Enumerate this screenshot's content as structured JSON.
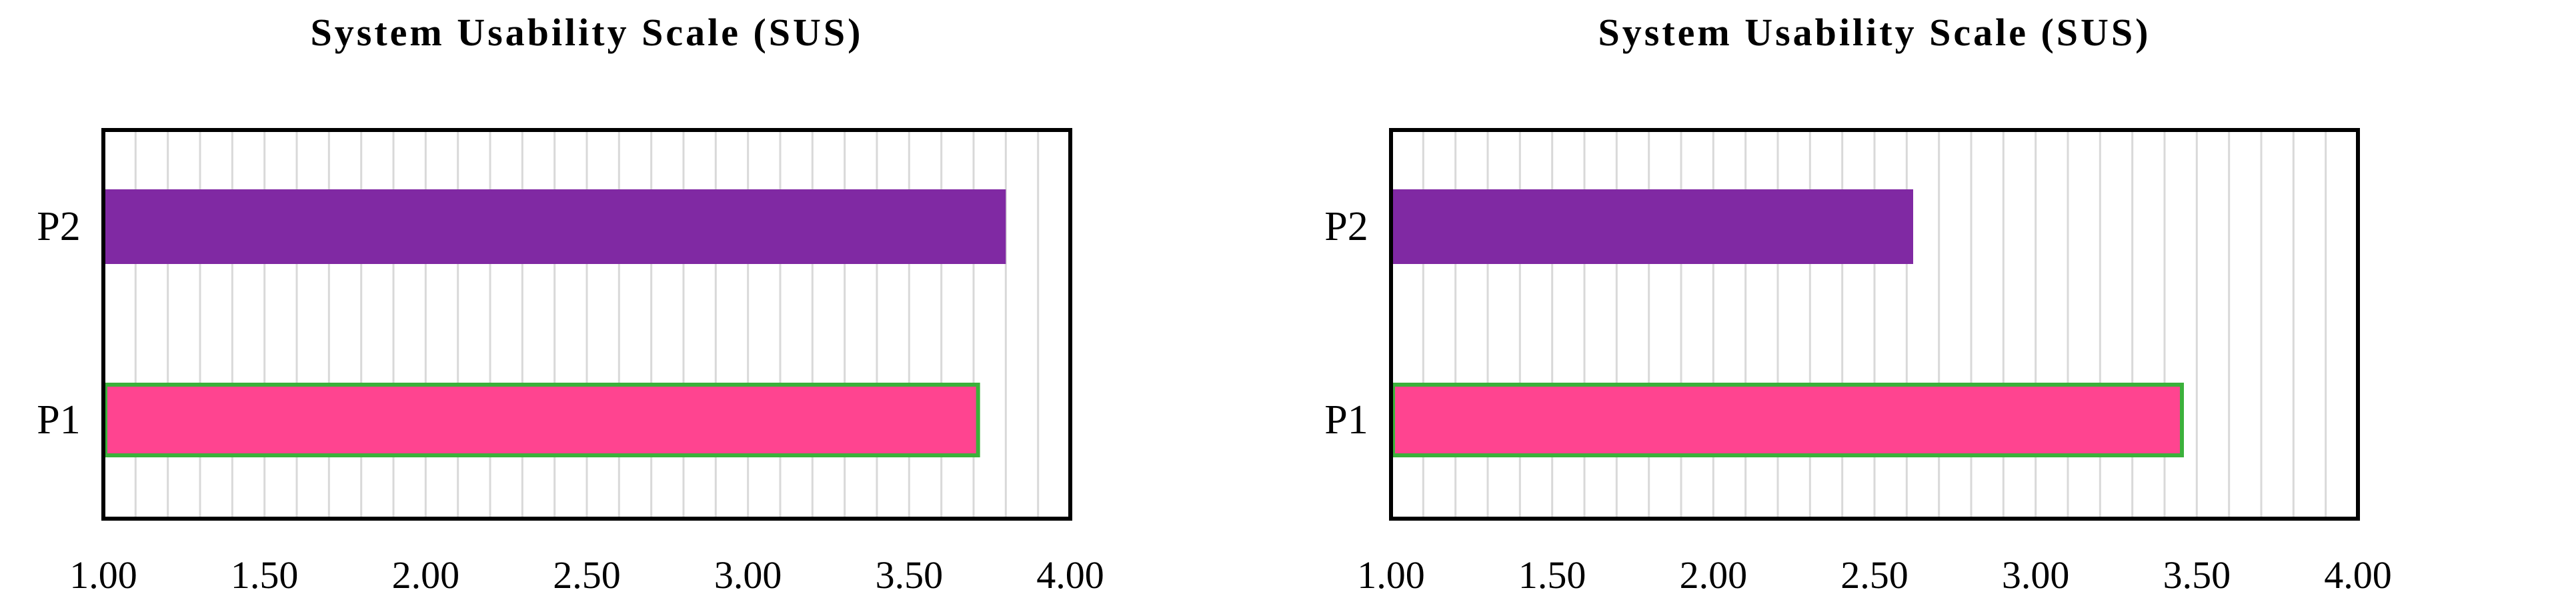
{
  "chart_data": [
    {
      "type": "bar",
      "orientation": "horizontal",
      "title": "System Usability Scale (SUS)",
      "categories": [
        "P1",
        "P2"
      ],
      "values": [
        3.72,
        3.8
      ],
      "xlim": [
        1.0,
        4.0
      ],
      "xticks": [
        "1.00",
        "1.50",
        "2.00",
        "2.50",
        "3.00",
        "3.50",
        "4.00"
      ],
      "xlabel": "",
      "ylabel": "",
      "grid": true,
      "bar_colors": [
        "#ff4490",
        "#8029a3"
      ],
      "bar_edge_colors": [
        "#3bb13b",
        "#8029a3"
      ]
    },
    {
      "type": "bar",
      "orientation": "horizontal",
      "title": "System Usability Scale (SUS)",
      "categories": [
        "P1",
        "P2"
      ],
      "values": [
        3.46,
        2.62
      ],
      "xlim": [
        1.0,
        4.0
      ],
      "xticks": [
        "1.00",
        "1.50",
        "2.00",
        "2.50",
        "3.00",
        "3.50",
        "4.00"
      ],
      "xlabel": "",
      "ylabel": "",
      "grid": true,
      "bar_colors": [
        "#ff4490",
        "#8029a3"
      ],
      "bar_edge_colors": [
        "#3bb13b",
        "#8029a3"
      ]
    }
  ]
}
